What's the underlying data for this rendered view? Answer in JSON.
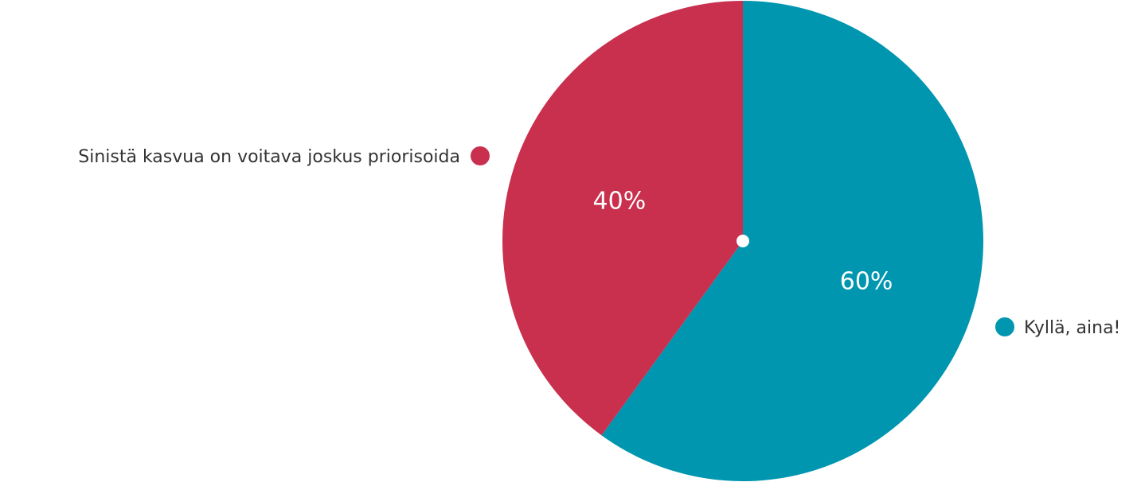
{
  "chart_data": {
    "type": "pie",
    "start_angle_deg": 0,
    "direction": "clockwise",
    "slices": [
      {
        "label": "Kyllä, aina!",
        "value": 60,
        "display": "60%",
        "color": "#0096b0"
      },
      {
        "label": "Sinistä kasvua on voitava joskus priorisoida",
        "value": 40,
        "display": "40%",
        "color": "#c8304e"
      }
    ],
    "center_dot_color": "#ffffff"
  }
}
